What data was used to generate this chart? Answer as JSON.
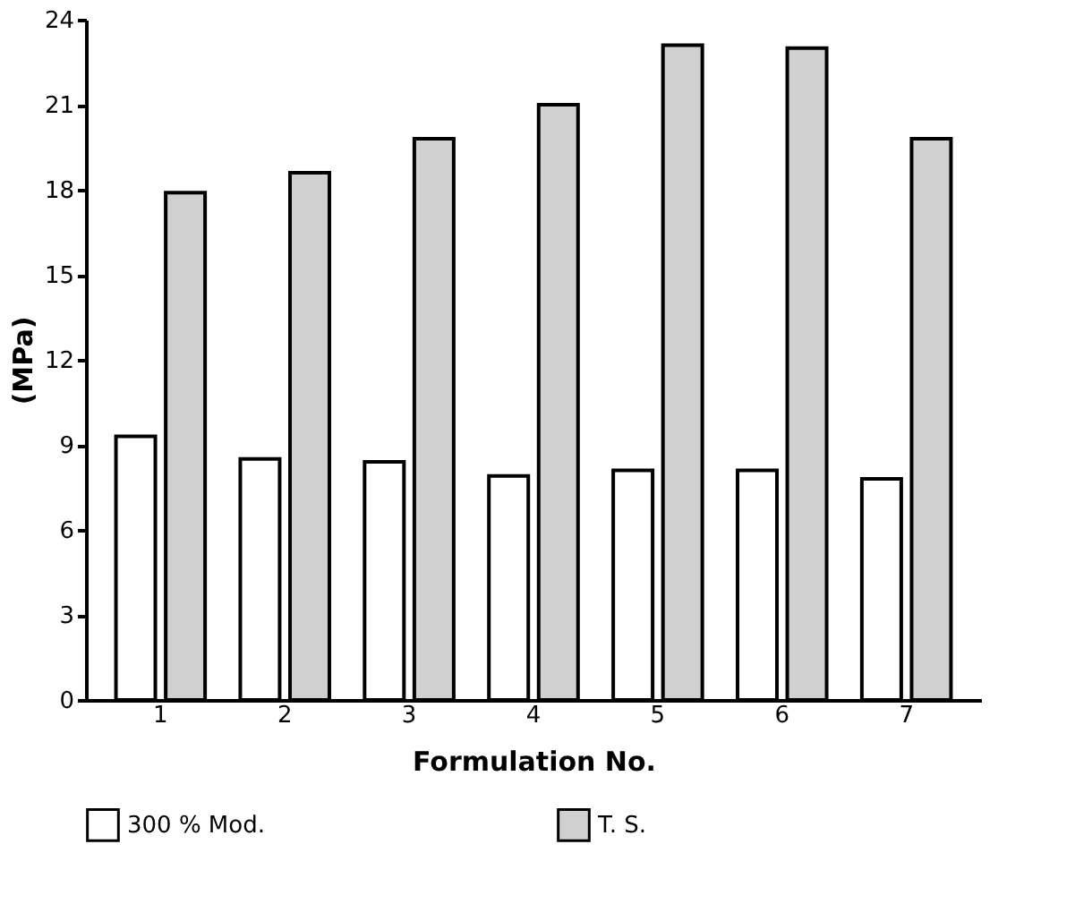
{
  "chart_data": {
    "type": "bar",
    "xlabel": "Formulation No.",
    "ylabel": "(MPa)",
    "categories": [
      "1",
      "2",
      "3",
      "4",
      "5",
      "6",
      "7"
    ],
    "series": [
      {
        "name": "300 % Mod.",
        "color": "#ffffff",
        "values": [
          9.3,
          8.5,
          8.4,
          7.9,
          8.1,
          8.1,
          7.8
        ]
      },
      {
        "name": "T. S.",
        "color": "#d0d0d0",
        "values": [
          17.9,
          18.6,
          19.8,
          21.0,
          23.1,
          23.0,
          19.8
        ]
      }
    ],
    "ylim": [
      0,
      24
    ],
    "yticks": [
      0,
      3,
      6,
      9,
      12,
      15,
      18,
      21,
      24
    ],
    "grid": false,
    "legend": "bottom"
  }
}
